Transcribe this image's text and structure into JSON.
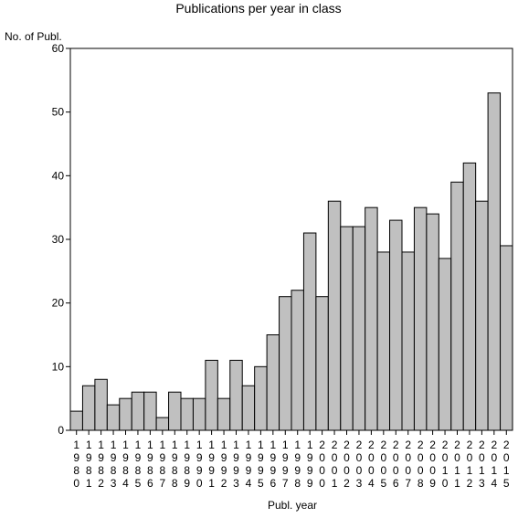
{
  "chart_data": {
    "type": "bar",
    "title": "Publications per year in class",
    "ylabel": "No. of Publ.",
    "xlabel": "Publ. year",
    "ylim": [
      0,
      60
    ],
    "yticks": [
      0,
      10,
      20,
      30,
      40,
      50,
      60
    ],
    "grid": false,
    "bar_color": "#c0c0c0",
    "edge_color": "#000000",
    "categories": [
      "1980",
      "1981",
      "1982",
      "1983",
      "1984",
      "1985",
      "1986",
      "1987",
      "1988",
      "1989",
      "1990",
      "1991",
      "1992",
      "1993",
      "1994",
      "1995",
      "1996",
      "1997",
      "1998",
      "1999",
      "2000",
      "2001",
      "2002",
      "2003",
      "2004",
      "2005",
      "2006",
      "2007",
      "2008",
      "2009",
      "2010",
      "2011",
      "2012",
      "2013",
      "2014",
      "2015"
    ],
    "values": [
      3,
      7,
      8,
      4,
      5,
      6,
      6,
      2,
      6,
      5,
      5,
      11,
      5,
      11,
      7,
      10,
      15,
      21,
      22,
      31,
      21,
      36,
      32,
      32,
      35,
      28,
      33,
      28,
      35,
      34,
      27,
      39,
      42,
      36,
      53,
      29
    ]
  }
}
